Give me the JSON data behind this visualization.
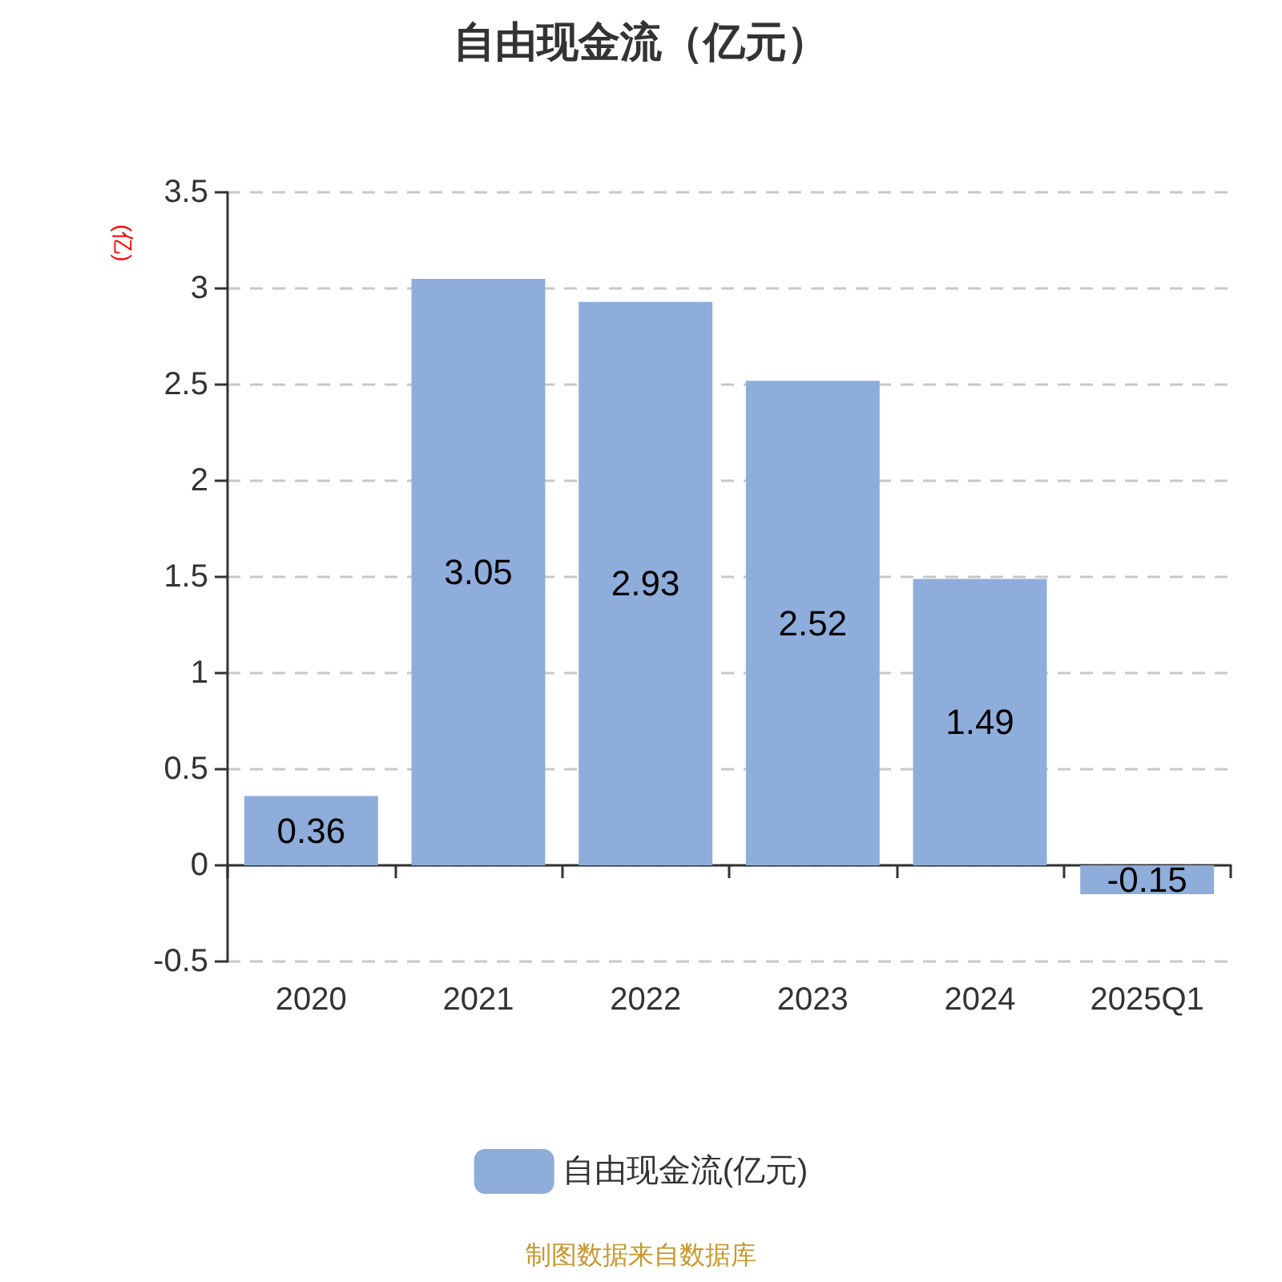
{
  "chart_data": {
    "type": "bar",
    "title": "自由现金流（亿元）",
    "ylabel": "(亿)",
    "categories": [
      "2020",
      "2021",
      "2022",
      "2023",
      "2024",
      "2025Q1"
    ],
    "series": [
      {
        "name": "自由现金流(亿元)",
        "color": "#8eaddb",
        "values": [
          0.36,
          3.05,
          2.93,
          2.52,
          1.49,
          -0.15
        ]
      }
    ],
    "ylim": [
      -0.5,
      3.5
    ],
    "yticks": [
      -0.5,
      0,
      0.5,
      1,
      1.5,
      2,
      2.5,
      3,
      3.5
    ],
    "grid": "y",
    "legend": "bottom",
    "data_labels": true,
    "annotations": [
      "制图数据来自数据库"
    ]
  }
}
